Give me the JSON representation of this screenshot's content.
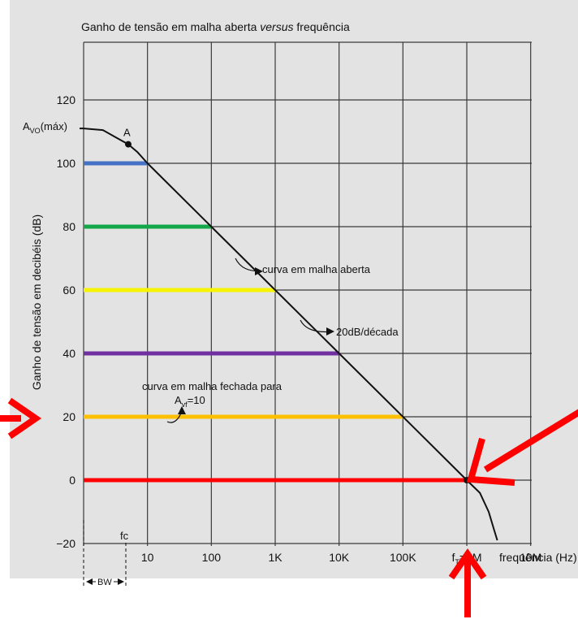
{
  "chart_data": {
    "type": "line",
    "title": {
      "text": "Ganho de tensão em malha aberta ",
      "italic": "versus",
      "rest": " frequência"
    },
    "xlabel": "frequência (Hz)",
    "ylabel": "Ganho de tensão em decibéis (dB)",
    "x_scale": "log",
    "xlim": [
      1,
      10000000
    ],
    "ylim": [
      -20,
      140
    ],
    "x_ticks": [
      {
        "x": 10,
        "label": "10"
      },
      {
        "x": 100,
        "label": "100"
      },
      {
        "x": 1000,
        "label": "1K"
      },
      {
        "x": 10000,
        "label": "10K"
      },
      {
        "x": 100000,
        "label": "100K"
      },
      {
        "x": 1000000,
        "label": "=1M",
        "prefix": "f",
        "sub": "T"
      },
      {
        "x": 10000000,
        "label": "10M"
      }
    ],
    "y_ticks": [
      {
        "y": 120,
        "label": "120"
      },
      {
        "y": 100,
        "label": "100"
      },
      {
        "y": 80,
        "label": "80"
      },
      {
        "y": 60,
        "label": "60"
      },
      {
        "y": 40,
        "label": "40"
      },
      {
        "y": 20,
        "label": "20"
      },
      {
        "y": 0,
        "label": "0"
      },
      {
        "y": -20,
        "label": "−20"
      }
    ],
    "grid": true,
    "series": [
      {
        "kind": "curve",
        "color": "#111111",
        "points": [
          [
            1,
            111
          ],
          [
            2,
            110.5
          ],
          [
            3,
            108.5
          ],
          [
            5,
            106
          ],
          [
            7,
            103.5
          ],
          [
            10,
            100
          ],
          [
            100,
            80
          ],
          [
            1000,
            60
          ],
          [
            10000,
            40
          ],
          [
            100000,
            20
          ],
          [
            1000000,
            0
          ],
          [
            1600000,
            -4
          ],
          [
            2200000,
            -10
          ],
          [
            2700000,
            -16
          ],
          [
            3000000,
            -19
          ]
        ]
      }
    ],
    "gain_lines": [
      {
        "y": 100,
        "x_end": 10,
        "color": "#4472c4"
      },
      {
        "y": 80,
        "x_end": 100,
        "color": "#12a84a"
      },
      {
        "y": 60,
        "x_end": 1000,
        "color": "#f7f400"
      },
      {
        "y": 40,
        "x_end": 10000,
        "color": "#7030a0"
      },
      {
        "y": 20,
        "x_end": 100000,
        "color": "#ffc000"
      },
      {
        "y": 0,
        "x_end": 1000000,
        "color": "#ff0000"
      }
    ],
    "markers": [
      {
        "x": 5,
        "y": 106,
        "label": "A"
      },
      {
        "x": 1000000,
        "y": 0,
        "label": ""
      }
    ],
    "annotations": {
      "avo_main": "A",
      "avo_sub": "VO",
      "avo_rest": "(máx)",
      "open_loop": "curva em malha aberta",
      "slope": "20dB/década",
      "closed_loop_line1": "curva em malha fechada para",
      "closed_loop_line2_main": "A",
      "closed_loop_line2_sub": "vf",
      "closed_loop_line2_rest": "=10",
      "fc": "fc",
      "bw": "BW"
    }
  },
  "colors": {
    "panel_bg": "#e3e3e3",
    "grid": "#3a3a3a",
    "arrows": "#ff0000",
    "text": "#111111"
  }
}
